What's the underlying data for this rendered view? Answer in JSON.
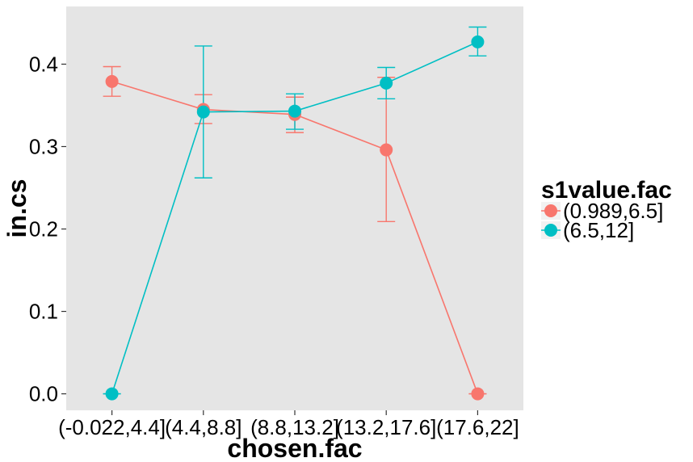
{
  "chart_data": {
    "type": "line",
    "xlabel": "chosen.fac",
    "ylabel": "in.cs",
    "categories": [
      "(-0.022,4.4]",
      "(4.4,8.8]",
      "(8.8,13.2]",
      "(13.2,17.6]",
      "(17.6,22]"
    ],
    "ylim": [
      -0.02,
      0.47
    ],
    "yticks": [
      0.0,
      0.1,
      0.2,
      0.3,
      0.4
    ],
    "ytick_labels": [
      "0.0",
      "0.1",
      "0.2",
      "0.3",
      "0.4"
    ],
    "grid": false,
    "background": "#e5e5e5",
    "legend": {
      "title": "s1value.fac",
      "placement": "right"
    },
    "series": [
      {
        "name": "(0.989,6.5]",
        "color": "#f8766d",
        "values": [
          0.379,
          0.345,
          0.339,
          0.296,
          0.0
        ],
        "err_low": [
          0.361,
          0.328,
          0.317,
          0.209,
          0.0
        ],
        "err_high": [
          0.397,
          0.363,
          0.36,
          0.384,
          0.0
        ]
      },
      {
        "name": "(6.5,12]",
        "color": "#00bfc4",
        "values": [
          0.0,
          0.342,
          0.343,
          0.377,
          0.427
        ],
        "err_low": [
          0.0,
          0.262,
          0.321,
          0.358,
          0.41
        ],
        "err_high": [
          0.0,
          0.422,
          0.364,
          0.396,
          0.445
        ]
      }
    ]
  }
}
